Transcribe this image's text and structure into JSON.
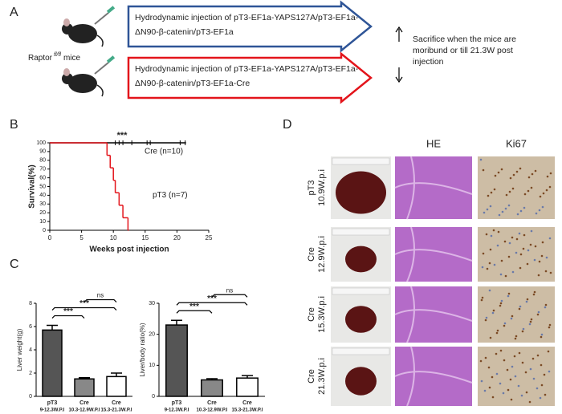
{
  "panel_labels": [
    "A",
    "B",
    "C",
    "D"
  ],
  "schema": {
    "mouse_label": "Raptor",
    "mouse_label_sup": "fl/fl",
    "mouse_label_suffix": "mice",
    "arrows": [
      {
        "lines": [
          "Hydrodynamic injection of pT3-EF1a-YAPS127A/pT3-EF1a-",
          "ΔN90-β-catenin/pT3-EF1a"
        ],
        "color": "#2f5597"
      },
      {
        "lines": [
          "Hydrodynamic injection of pT3-EF1a-YAPS127A/pT3-EF1a-",
          "ΔN90-β-catenin/pT3-EF1a-Cre"
        ],
        "color": "#e3141b"
      }
    ],
    "outcome_lines": [
      "Sacrifice when the mice are",
      "moribund or till 21.3W post",
      "injection"
    ]
  },
  "chart_data": [
    {
      "type": "survival",
      "xlabel": "Weeks post injection",
      "ylabel": "Survival(%)",
      "significance": "***",
      "xlim": [
        0,
        25
      ],
      "xticks": [
        0,
        5,
        10,
        15,
        20,
        25
      ],
      "ylim": [
        0,
        100
      ],
      "yticks": [
        0,
        10,
        20,
        30,
        40,
        50,
        60,
        70,
        80,
        90,
        100
      ],
      "series": [
        {
          "name": "Cre (n=10)",
          "color": "#000000",
          "x": [
            0,
            21.3
          ],
          "values": [
            100,
            100
          ],
          "censored_x": [
            10.3,
            10.9,
            11.5,
            12.9,
            15.3,
            15.8,
            20.5,
            21.3
          ]
        },
        {
          "name": "pT3 (n=7)",
          "color": "#e3141b",
          "x": [
            0,
            9,
            9.5,
            10,
            10.3,
            10.9,
            11.5,
            12.3
          ],
          "values": [
            100,
            85.7,
            71.4,
            57.1,
            42.9,
            28.6,
            14.3,
            0
          ],
          "censored_x": []
        }
      ]
    },
    {
      "type": "bar",
      "ylabel": "Liver weight(g)",
      "ylim": [
        0,
        8
      ],
      "yticks": [
        0,
        2,
        4,
        6,
        8
      ],
      "categories": [
        "pT3",
        "Cre",
        "Cre"
      ],
      "sublabels": [
        "9-12.3W.P.I",
        "10.3-12.9W.P.I",
        "15.3-21.3W.P.I"
      ],
      "values": [
        5.7,
        1.5,
        1.7
      ],
      "errors": [
        0.4,
        0.1,
        0.3
      ],
      "colors": [
        "#555555",
        "#888888",
        "#ffffff"
      ],
      "significance": [
        {
          "from": 0,
          "to": 1,
          "label": "***"
        },
        {
          "from": 0,
          "to": 2,
          "label": "***"
        },
        {
          "from": 1,
          "to": 2,
          "label": "ns"
        }
      ]
    },
    {
      "type": "bar",
      "ylabel": "Liver/body ratio(%)",
      "ylim": [
        0,
        30
      ],
      "yticks": [
        0,
        10,
        20,
        30
      ],
      "categories": [
        "pT3",
        "Cre",
        "Cre"
      ],
      "sublabels": [
        "9-12.3W.P.I",
        "10.3-12.9W.P.I",
        "15.3-21.3W.P.I"
      ],
      "values": [
        23,
        5.3,
        5.9
      ],
      "errors": [
        1.5,
        0.4,
        0.8
      ],
      "colors": [
        "#555555",
        "#888888",
        "#ffffff"
      ],
      "significance": [
        {
          "from": 0,
          "to": 1,
          "label": "***"
        },
        {
          "from": 0,
          "to": 2,
          "label": "***"
        },
        {
          "from": 1,
          "to": 2,
          "label": "ns"
        }
      ]
    }
  ],
  "histology": {
    "columns": [
      "HE",
      "Ki67"
    ],
    "rows": [
      {
        "lines": [
          "pT3",
          "10.9W.p.i"
        ]
      },
      {
        "lines": [
          "Cre",
          "12.9W.p.i"
        ]
      },
      {
        "lines": [
          "Cre",
          "15.3W.p.i"
        ]
      },
      {
        "lines": [
          "Cre",
          "21.3W.p.i"
        ]
      }
    ]
  }
}
